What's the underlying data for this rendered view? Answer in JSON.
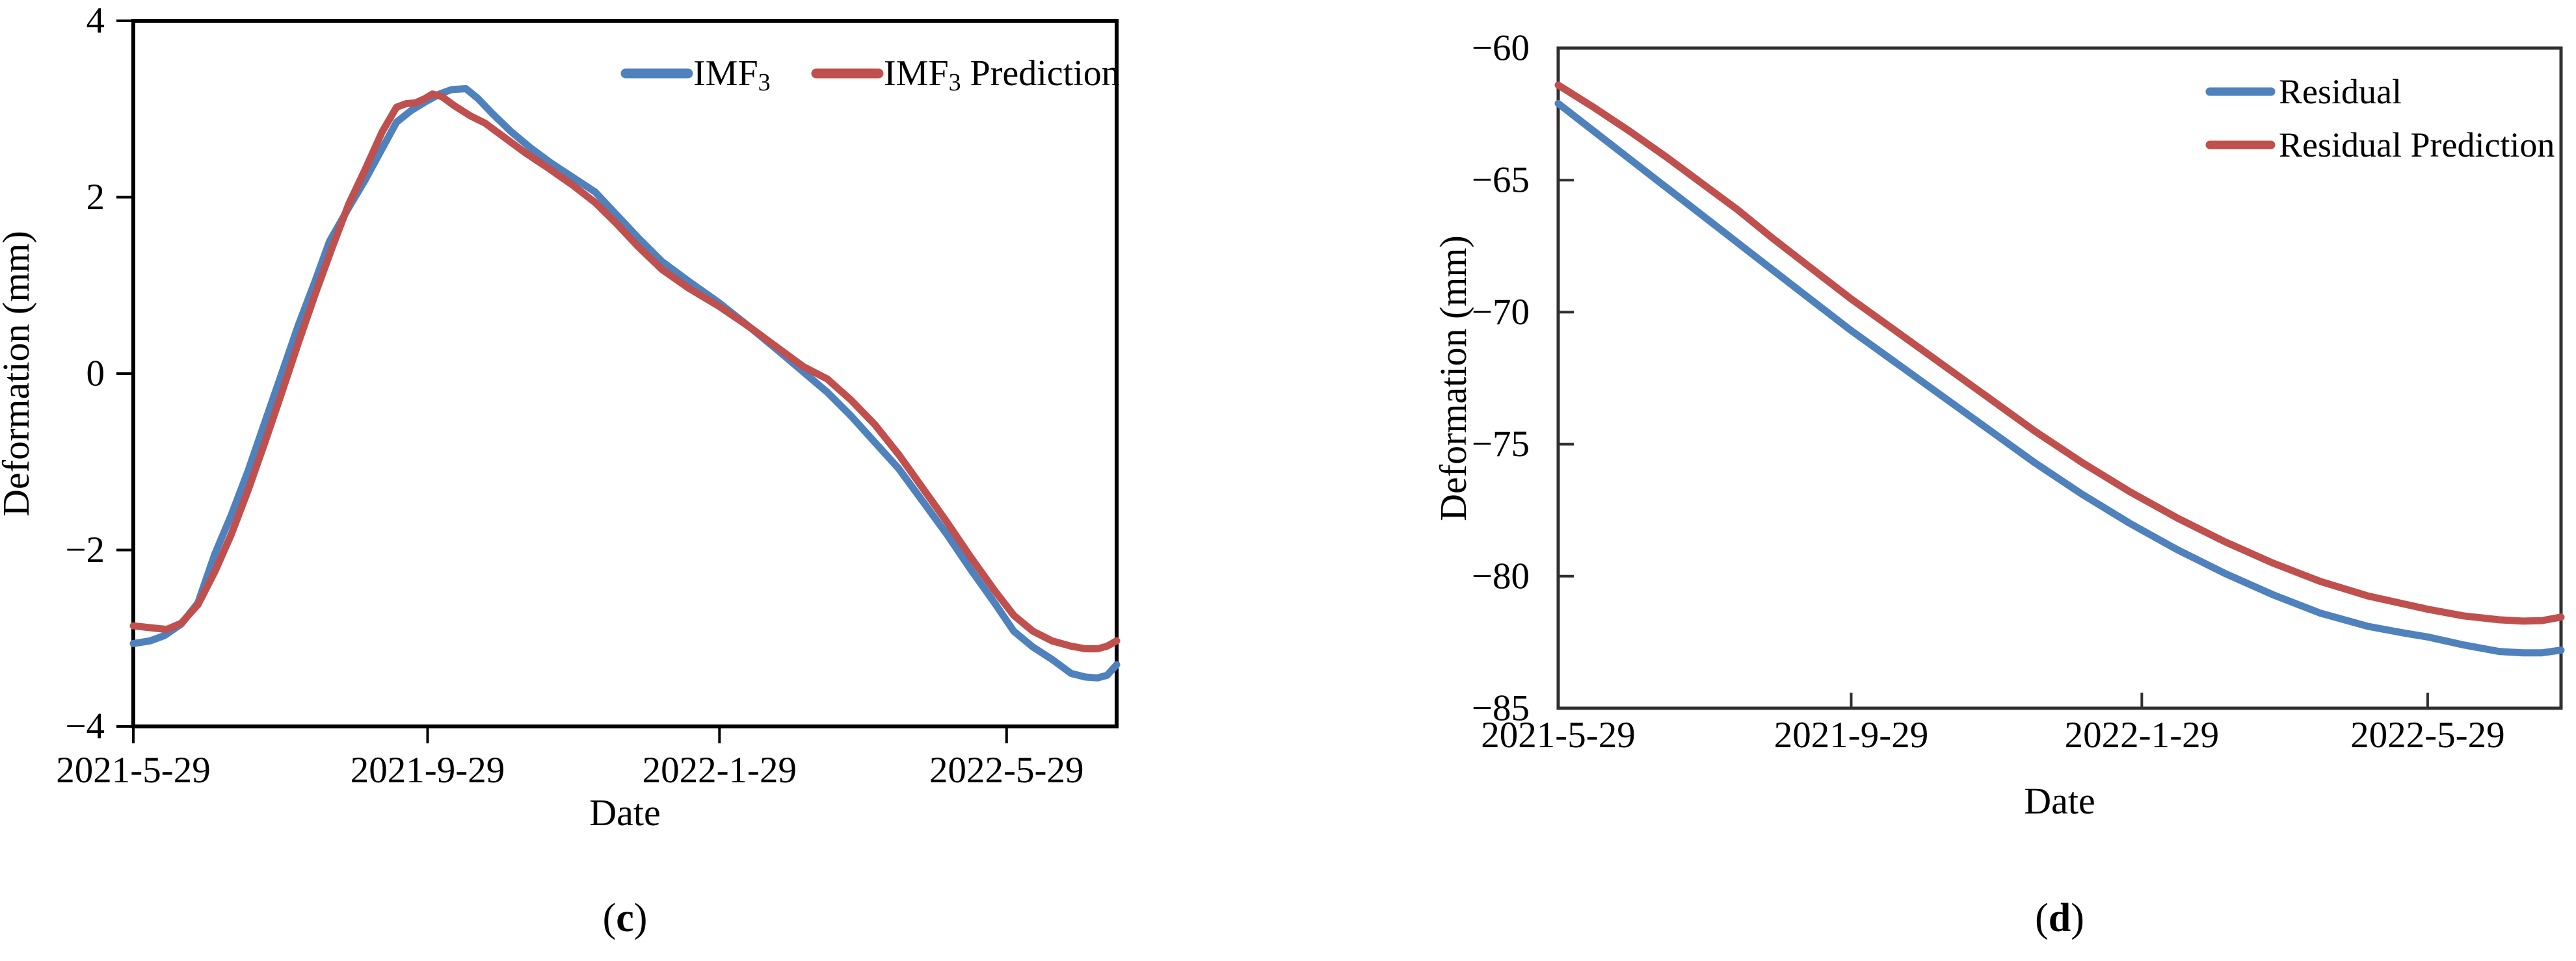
{
  "figure": {
    "background": "#ffffff",
    "text_color": "#000000",
    "panel_count": 2
  },
  "colors": {
    "series_blue": "#4F81BD",
    "series_red": "#C0504D",
    "axis_left_chart": "#000000",
    "axis_right_chart": "#303030"
  },
  "chart_data": [
    {
      "type": "line",
      "caption": {
        "pre": "(",
        "letter": "c",
        "post": ")"
      },
      "xlabel": "Date",
      "ylabel": "Deformation (mm)",
      "x_unit": "days since 2021-5-29",
      "xlim": [
        0,
        411
      ],
      "ylim": [
        -4,
        4
      ],
      "grid": false,
      "legend_position": "top-right-horizontal-inside",
      "xticks": [
        {
          "day": 0,
          "label": "2021-5-29",
          "mark": true
        },
        {
          "day": 123,
          "label": "2021-9-29",
          "mark": true
        },
        {
          "day": 245,
          "label": "2022-1-29",
          "mark": true
        },
        {
          "day": 365,
          "label": "2022-5-29",
          "mark": true
        }
      ],
      "yticks": [
        {
          "v": 4,
          "label": "4"
        },
        {
          "v": 2,
          "label": "2"
        },
        {
          "v": 0,
          "label": "0"
        },
        {
          "v": -2,
          "label": "−2"
        },
        {
          "v": -4,
          "label": "−4"
        }
      ],
      "series": [
        {
          "name": "IMF3",
          "label_pre": "IMF",
          "label_sub": "3",
          "label_post": "",
          "color": "#4F81BD",
          "points": [
            [
              0,
              -3.06
            ],
            [
              7,
              -3.03
            ],
            [
              13,
              -2.97
            ],
            [
              20,
              -2.84
            ],
            [
              27,
              -2.6
            ],
            [
              34,
              -2.05
            ],
            [
              41,
              -1.6
            ],
            [
              48,
              -1.1
            ],
            [
              55,
              -0.55
            ],
            [
              62,
              0
            ],
            [
              69,
              0.55
            ],
            [
              76,
              1.05
            ],
            [
              82,
              1.5
            ],
            [
              90,
              1.88
            ],
            [
              97,
              2.2
            ],
            [
              104,
              2.55
            ],
            [
              110,
              2.85
            ],
            [
              116,
              2.98
            ],
            [
              122,
              3.08
            ],
            [
              128,
              3.17
            ],
            [
              133,
              3.22
            ],
            [
              139,
              3.23
            ],
            [
              144,
              3.12
            ],
            [
              150,
              2.95
            ],
            [
              158,
              2.74
            ],
            [
              166,
              2.56
            ],
            [
              175,
              2.38
            ],
            [
              184,
              2.22
            ],
            [
              193,
              2.06
            ],
            [
              202,
              1.8
            ],
            [
              211,
              1.54
            ],
            [
              221,
              1.27
            ],
            [
              232,
              1.05
            ],
            [
              245,
              0.8
            ],
            [
              258,
              0.52
            ],
            [
              270,
              0.25
            ],
            [
              280,
              0.02
            ],
            [
              290,
              -0.21
            ],
            [
              300,
              -0.48
            ],
            [
              310,
              -0.78
            ],
            [
              320,
              -1.08
            ],
            [
              330,
              -1.45
            ],
            [
              340,
              -1.82
            ],
            [
              350,
              -2.22
            ],
            [
              360,
              -2.6
            ],
            [
              368,
              -2.92
            ],
            [
              376,
              -3.1
            ],
            [
              384,
              -3.24
            ],
            [
              392,
              -3.4
            ],
            [
              398,
              -3.44
            ],
            [
              403,
              -3.45
            ],
            [
              407,
              -3.42
            ],
            [
              411,
              -3.3
            ]
          ]
        },
        {
          "name": "IMF3 Prediction",
          "label_pre": "IMF",
          "label_sub": "3",
          "label_post": " Prediction",
          "color": "#C0504D",
          "points": [
            [
              0,
              -2.86
            ],
            [
              7,
              -2.88
            ],
            [
              14,
              -2.9
            ],
            [
              20,
              -2.83
            ],
            [
              27,
              -2.62
            ],
            [
              34,
              -2.25
            ],
            [
              41,
              -1.82
            ],
            [
              48,
              -1.32
            ],
            [
              55,
              -0.78
            ],
            [
              62,
              -0.22
            ],
            [
              69,
              0.35
            ],
            [
              76,
              0.9
            ],
            [
              83,
              1.42
            ],
            [
              90,
              1.92
            ],
            [
              97,
              2.32
            ],
            [
              104,
              2.74
            ],
            [
              110,
              3.02
            ],
            [
              114,
              3.06
            ],
            [
              118,
              3.07
            ],
            [
              122,
              3.12
            ],
            [
              125,
              3.17
            ],
            [
              129,
              3.14
            ],
            [
              134,
              3.04
            ],
            [
              141,
              2.92
            ],
            [
              147,
              2.84
            ],
            [
              155,
              2.68
            ],
            [
              164,
              2.5
            ],
            [
              174,
              2.32
            ],
            [
              184,
              2.13
            ],
            [
              193,
              1.94
            ],
            [
              202,
              1.7
            ],
            [
              211,
              1.44
            ],
            [
              221,
              1.18
            ],
            [
              232,
              0.97
            ],
            [
              245,
              0.76
            ],
            [
              258,
              0.52
            ],
            [
              270,
              0.28
            ],
            [
              280,
              0.08
            ],
            [
              290,
              -0.06
            ],
            [
              300,
              -0.3
            ],
            [
              310,
              -0.58
            ],
            [
              320,
              -0.92
            ],
            [
              330,
              -1.3
            ],
            [
              340,
              -1.68
            ],
            [
              350,
              -2.08
            ],
            [
              360,
              -2.46
            ],
            [
              368,
              -2.74
            ],
            [
              376,
              -2.92
            ],
            [
              384,
              -3.03
            ],
            [
              392,
              -3.09
            ],
            [
              398,
              -3.12
            ],
            [
              403,
              -3.12
            ],
            [
              407,
              -3.09
            ],
            [
              411,
              -3.03
            ]
          ]
        }
      ]
    },
    {
      "type": "line",
      "caption": {
        "pre": "(",
        "letter": "d",
        "post": ")"
      },
      "xlabel": "Date",
      "ylabel": "Deformation (mm)",
      "x_unit": "days since 2021-5-29",
      "xlim": [
        0,
        421
      ],
      "ylim": [
        -85,
        -60
      ],
      "grid": false,
      "legend_position": "top-right-vertical-inside",
      "xticks": [
        {
          "day": 0,
          "label": "2021-5-29",
          "mark": false
        },
        {
          "day": 123,
          "label": "2021-9-29",
          "mark": true
        },
        {
          "day": 245,
          "label": "2022-1-29",
          "mark": true
        },
        {
          "day": 365,
          "label": "2022-5-29",
          "mark": true
        }
      ],
      "yticks": [
        {
          "v": -60,
          "label": "−60"
        },
        {
          "v": -65,
          "label": "−65"
        },
        {
          "v": -70,
          "label": "−70"
        },
        {
          "v": -75,
          "label": "−75"
        },
        {
          "v": -80,
          "label": "−80"
        },
        {
          "v": -85,
          "label": "−85"
        }
      ],
      "series": [
        {
          "name": "Residual",
          "label_pre": "Residual",
          "label_sub": "",
          "label_post": "",
          "color": "#4F81BD",
          "points": [
            [
              0,
              -62.1
            ],
            [
              15,
              -63.15
            ],
            [
              30,
              -64.2
            ],
            [
              45,
              -65.25
            ],
            [
              60,
              -66.3
            ],
            [
              75,
              -67.35
            ],
            [
              90,
              -68.4
            ],
            [
              105,
              -69.45
            ],
            [
              123,
              -70.7
            ],
            [
              140,
              -71.8
            ],
            [
              160,
              -73.1
            ],
            [
              180,
              -74.4
            ],
            [
              200,
              -75.7
            ],
            [
              220,
              -76.9
            ],
            [
              240,
              -78
            ],
            [
              260,
              -79
            ],
            [
              280,
              -79.9
            ],
            [
              300,
              -80.7
            ],
            [
              320,
              -81.4
            ],
            [
              340,
              -81.9
            ],
            [
              355,
              -82.15
            ],
            [
              365,
              -82.3
            ],
            [
              380,
              -82.6
            ],
            [
              395,
              -82.85
            ],
            [
              405,
              -82.9
            ],
            [
              413,
              -82.9
            ],
            [
              421,
              -82.8
            ]
          ]
        },
        {
          "name": "Residual Prediction",
          "label_pre": "Residual Prediction",
          "label_sub": "",
          "label_post": "",
          "color": "#C0504D",
          "points": [
            [
              0,
              -61.4
            ],
            [
              15,
              -62.25
            ],
            [
              30,
              -63.15
            ],
            [
              45,
              -64.1
            ],
            [
              60,
              -65.1
            ],
            [
              75,
              -66.1
            ],
            [
              90,
              -67.2
            ],
            [
              105,
              -68.25
            ],
            [
              123,
              -69.5
            ],
            [
              140,
              -70.6
            ],
            [
              160,
              -71.9
            ],
            [
              180,
              -73.2
            ],
            [
              200,
              -74.5
            ],
            [
              220,
              -75.7
            ],
            [
              240,
              -76.8
            ],
            [
              260,
              -77.8
            ],
            [
              280,
              -78.7
            ],
            [
              300,
              -79.5
            ],
            [
              320,
              -80.2
            ],
            [
              340,
              -80.75
            ],
            [
              355,
              -81.05
            ],
            [
              365,
              -81.25
            ],
            [
              380,
              -81.5
            ],
            [
              395,
              -81.65
            ],
            [
              405,
              -81.7
            ],
            [
              413,
              -81.68
            ],
            [
              421,
              -81.55
            ]
          ]
        }
      ]
    }
  ]
}
